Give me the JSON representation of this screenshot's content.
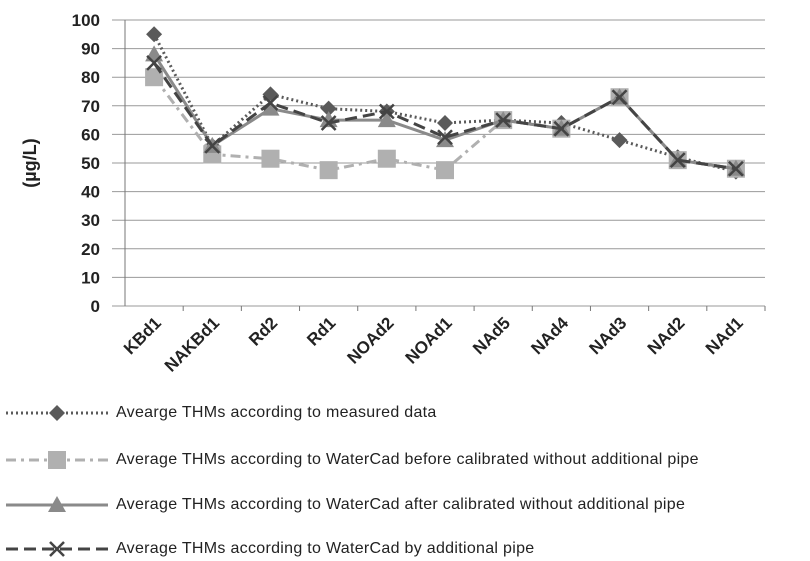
{
  "chart_data": {
    "type": "line",
    "y_label": "(µg/L)",
    "categories": [
      "KBd1",
      "NAKBd1",
      "Rd2",
      "Rd1",
      "NOAd2",
      "NOAd1",
      "NAd5",
      "NAd4",
      "NAd3",
      "NAd2",
      "NAd1"
    ],
    "ylim": [
      0,
      100
    ],
    "yticks": [
      0,
      10,
      20,
      30,
      40,
      50,
      60,
      70,
      80,
      90,
      100
    ],
    "grid": true,
    "series": [
      {
        "name": "Avearge THMs according to measured data",
        "color": "#5a5a5a",
        "line": "dotted",
        "marker": "diamond",
        "values": [
          95,
          56,
          74,
          69,
          68,
          64,
          65,
          64,
          58,
          52,
          47
        ]
      },
      {
        "name": "Average THMs according to WaterCad before calibrated without additional pipe",
        "color": "#b0b0b0",
        "line": "dashdot",
        "marker": "square",
        "values": [
          80,
          53,
          51.5,
          47.5,
          51.5,
          47.5,
          65,
          62,
          73,
          51,
          48
        ]
      },
      {
        "name": "Average THMs according to WaterCad after calibrated without additional pipe",
        "color": "#8a8a8a",
        "line": "solid",
        "marker": "triangle",
        "values": [
          88,
          56,
          69,
          65,
          65,
          58,
          65,
          62,
          73,
          51,
          48
        ]
      },
      {
        "name": "Average THMs according to WaterCad by additional pipe",
        "color": "#444444",
        "line": "dashed",
        "marker": "x",
        "values": [
          85,
          56,
          71,
          64,
          68,
          59,
          65,
          62,
          73,
          51,
          48
        ]
      }
    ]
  }
}
